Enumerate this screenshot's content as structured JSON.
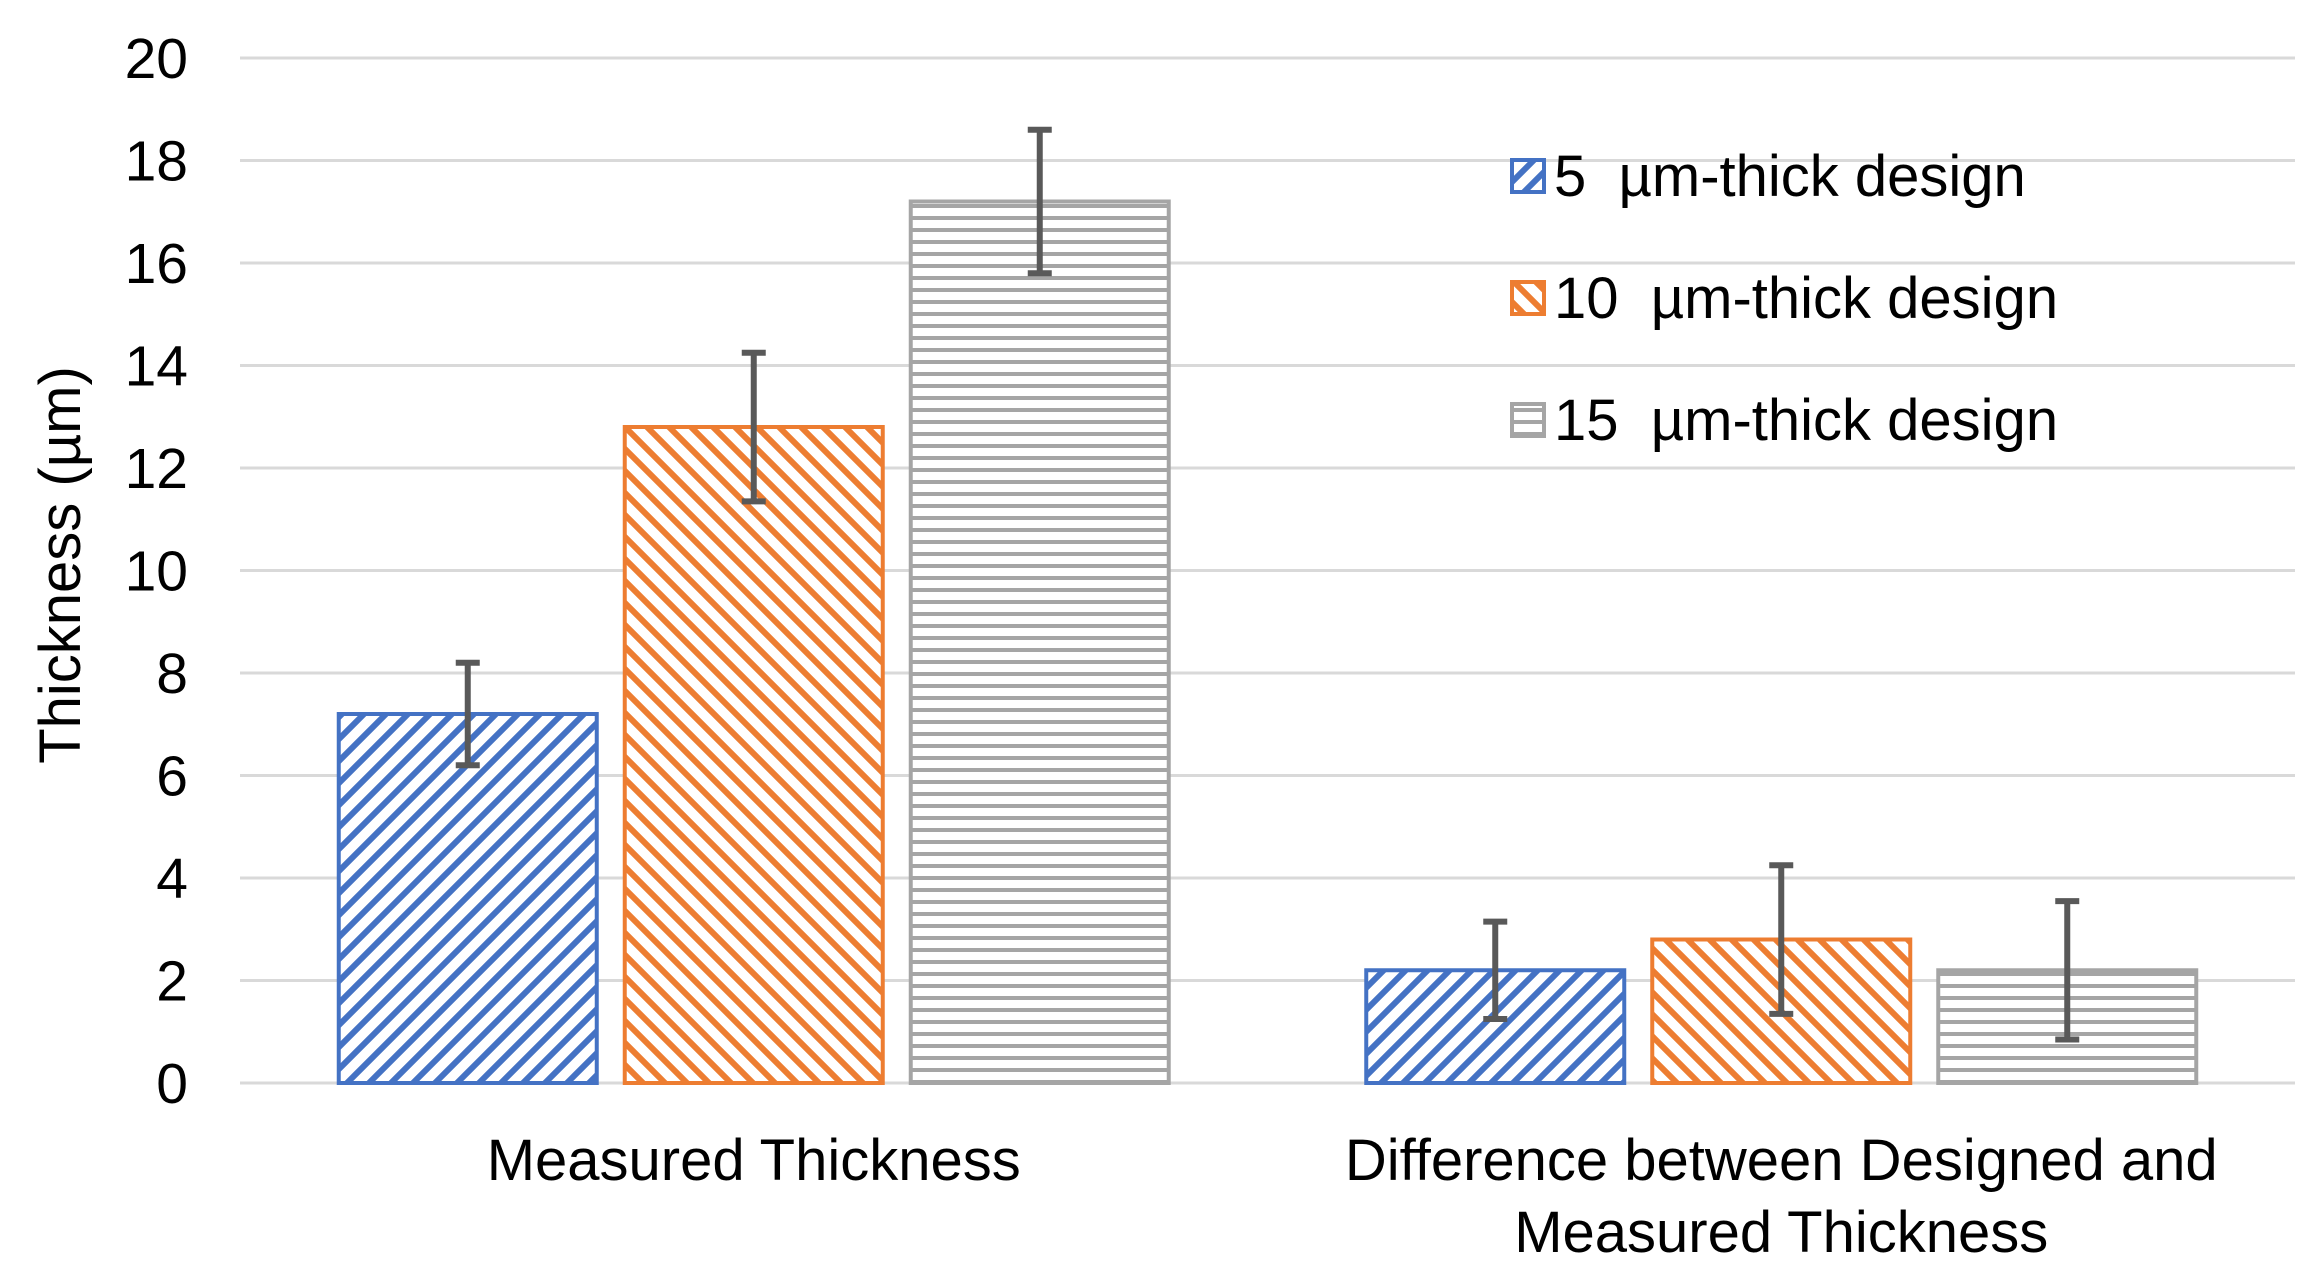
{
  "chart_data": {
    "type": "bar",
    "title": "",
    "xlabel": "",
    "ylabel": "Thickness (µm)",
    "ylim": [
      0,
      20
    ],
    "ytick_step": 2,
    "grid": true,
    "legend_position": "top-right",
    "categories": [
      [
        "Measured Thickness"
      ],
      [
        "Difference between Designed and",
        "Measured Thickness"
      ]
    ],
    "series": [
      {
        "name": "5  µm-thick design",
        "color": "#4472C4",
        "pattern": "diagonal-up",
        "values": [
          7.2,
          2.2
        ],
        "errors": [
          1.0,
          0.95
        ]
      },
      {
        "name": "10  µm-thick design",
        "color": "#ED7D31",
        "pattern": "diagonal-down",
        "values": [
          12.8,
          2.8
        ],
        "errors": [
          1.45,
          1.45
        ]
      },
      {
        "name": "15  µm-thick design",
        "color": "#A5A5A5",
        "pattern": "horizontal",
        "values": [
          17.2,
          2.2
        ],
        "errors": [
          1.4,
          1.35
        ]
      }
    ]
  }
}
